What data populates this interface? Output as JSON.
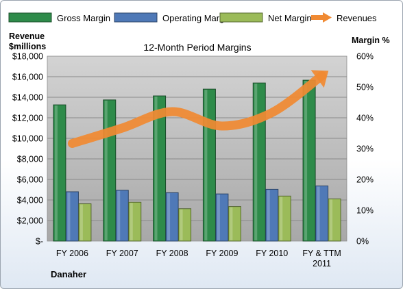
{
  "chart_data": {
    "type": "bar",
    "title": "12-Month Period Margins",
    "company": "Danaher",
    "ylabel_left_line1": "Revenue",
    "ylabel_left_line2": "$millions",
    "ylabel_right": "Margin %",
    "categories": [
      [
        "FY 2006"
      ],
      [
        "FY 2007"
      ],
      [
        "FY 2008"
      ],
      [
        "FY 2009"
      ],
      [
        "FY 2010"
      ],
      [
        "FY & TTM",
        "2011"
      ]
    ],
    "left_axis": {
      "ylim": [
        0,
        18000
      ],
      "ticks": [
        0,
        2000,
        4000,
        6000,
        8000,
        10000,
        12000,
        14000,
        16000,
        18000
      ],
      "tick_labels": [
        "$-",
        "$2,000",
        "$4,000",
        "$6,000",
        "$8,000",
        "$10,000",
        "$12,000",
        "$14,000",
        "$16,000",
        "$18,000"
      ]
    },
    "right_axis": {
      "ylim": [
        0,
        60
      ],
      "ticks": [
        0,
        10,
        20,
        30,
        40,
        50,
        60
      ],
      "tick_labels": [
        "0%",
        "10%",
        "20%",
        "30%",
        "40%",
        "50%",
        "60%"
      ]
    },
    "series": [
      {
        "name": "Gross Margin",
        "axis": "right",
        "kind": "bar",
        "color": "#2e8b4a",
        "values": [
          44.2,
          45.8,
          47.1,
          49.3,
          51.3,
          52.2
        ]
      },
      {
        "name": "Operating Margin",
        "axis": "right",
        "kind": "bar",
        "color": "#4f79b7",
        "values": [
          16.0,
          16.5,
          15.7,
          15.3,
          16.8,
          17.9
        ]
      },
      {
        "name": "Net Margin",
        "axis": "right",
        "kind": "bar",
        "color": "#9bbb59",
        "values": [
          12.1,
          12.6,
          10.5,
          11.2,
          14.6,
          13.7
        ]
      },
      {
        "name": "Revenues",
        "axis": "left",
        "kind": "line-arrow",
        "color": "#f08a33",
        "values": [
          9500,
          11000,
          12600,
          11200,
          12500,
          16100
        ]
      }
    ],
    "grid": true,
    "legend_position": "top"
  }
}
